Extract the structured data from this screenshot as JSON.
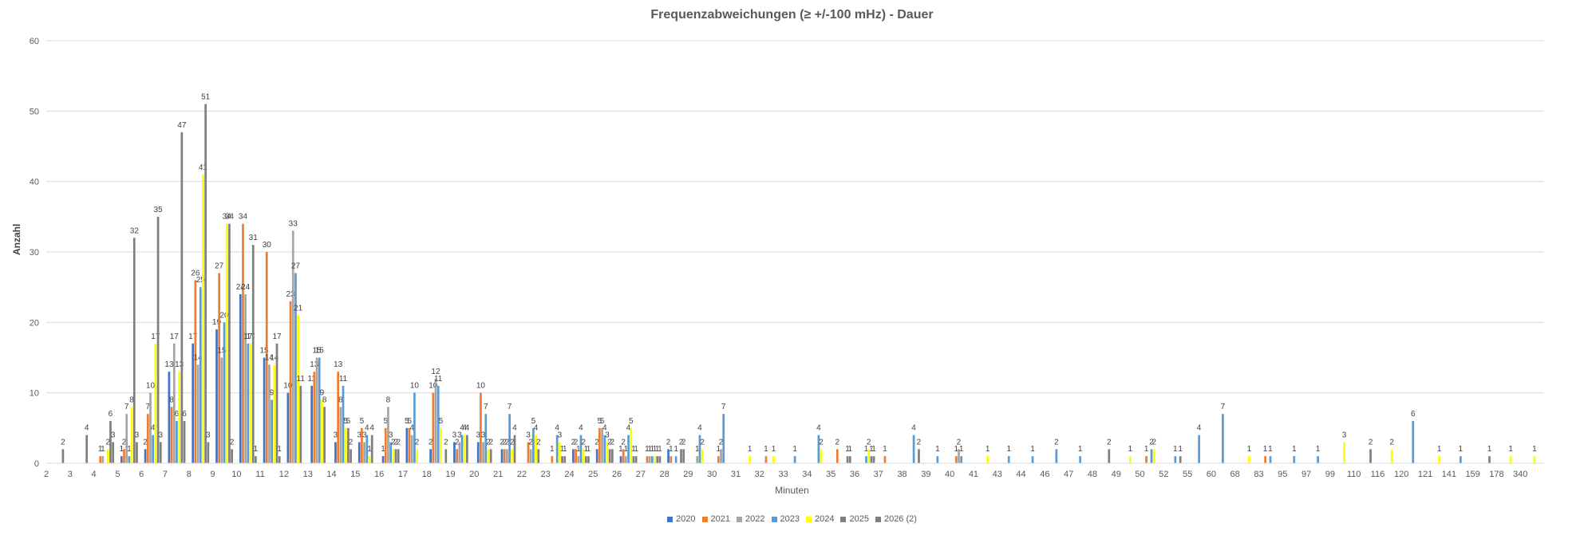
{
  "chart_data": {
    "type": "bar",
    "title": "Frequenzabweichungen (≥ +/-100 mHz) - Dauer",
    "xlabel": "Minuten",
    "ylabel": "Anzahl",
    "ylim": [
      0,
      60
    ],
    "yticks": [
      0,
      10,
      20,
      30,
      40,
      50,
      60
    ],
    "grid": true,
    "legend_position": "bottom",
    "categories": [
      "2",
      "3",
      "4",
      "5",
      "6",
      "7",
      "8",
      "9",
      "10",
      "11",
      "12",
      "13",
      "14",
      "15",
      "16",
      "17",
      "18",
      "19",
      "20",
      "21",
      "22",
      "23",
      "24",
      "25",
      "26",
      "27",
      "28",
      "29",
      "30",
      "31",
      "32",
      "33",
      "34",
      "35",
      "36",
      "37",
      "38",
      "39",
      "40",
      "41",
      "43",
      "44",
      "46",
      "47",
      "48",
      "49",
      "50",
      "52",
      "55",
      "60",
      "68",
      "83",
      "95",
      "97",
      "99",
      "110",
      "116",
      "120",
      "121",
      "141",
      "159",
      "178",
      "340"
    ],
    "series": [
      {
        "name": "2020",
        "color": "#4472C4",
        "values": [
          0,
          0,
          0,
          1,
          2,
          13,
          17,
          19,
          24,
          15,
          10,
          11,
          3,
          3,
          1,
          5,
          2,
          3,
          3,
          2,
          0,
          0,
          2,
          2,
          1,
          0,
          2,
          0,
          0,
          0,
          0,
          0,
          0,
          0,
          0,
          0,
          0,
          0,
          0,
          0,
          0,
          0,
          0,
          0,
          0,
          0,
          0,
          0,
          0,
          0,
          0,
          0,
          0,
          0,
          0,
          0,
          0,
          0,
          0,
          0,
          0,
          0,
          0
        ]
      },
      {
        "name": "2021",
        "color": "#ED7D31",
        "values": [
          0,
          0,
          1,
          2,
          7,
          8,
          26,
          27,
          34,
          30,
          23,
          13,
          13,
          5,
          5,
          5,
          10,
          2,
          10,
          2,
          3,
          1,
          2,
          5,
          2,
          1,
          1,
          0,
          1,
          0,
          1,
          0,
          0,
          2,
          0,
          1,
          0,
          0,
          1,
          0,
          0,
          0,
          0,
          0,
          0,
          0,
          1,
          0,
          0,
          0,
          0,
          1,
          0,
          0,
          0,
          0,
          0,
          0,
          0,
          0,
          0,
          0,
          0
        ]
      },
      {
        "name": "2022",
        "color": "#A5A5A5",
        "values": [
          0,
          0,
          1,
          7,
          10,
          17,
          14,
          15,
          24,
          14,
          33,
          15,
          8,
          3,
          8,
          4,
          12,
          3,
          3,
          2,
          2,
          0,
          1,
          5,
          1,
          1,
          0,
          1,
          2,
          0,
          0,
          0,
          0,
          0,
          0,
          0,
          0,
          0,
          2,
          0,
          0,
          0,
          0,
          0,
          0,
          0,
          0,
          0,
          0,
          0,
          0,
          0,
          0,
          0,
          0,
          0,
          0,
          0,
          0,
          0,
          0,
          0,
          0
        ]
      },
      {
        "name": "2023",
        "color": "#5B9BD5",
        "values": [
          0,
          0,
          0,
          1,
          4,
          6,
          25,
          20,
          17,
          9,
          27,
          15,
          11,
          4,
          3,
          10,
          11,
          4,
          7,
          7,
          5,
          4,
          4,
          4,
          4,
          1,
          1,
          4,
          7,
          0,
          0,
          1,
          4,
          0,
          1,
          0,
          4,
          1,
          1,
          0,
          1,
          1,
          2,
          1,
          0,
          0,
          2,
          1,
          4,
          7,
          0,
          1,
          1,
          1,
          0,
          0,
          0,
          6,
          0,
          1,
          0,
          0,
          0
        ]
      },
      {
        "name": "2024",
        "color": "#FFFF00",
        "values": [
          0,
          0,
          2,
          8,
          17,
          13,
          41,
          34,
          17,
          14,
          21,
          9,
          5,
          1,
          2,
          2,
          5,
          4,
          2,
          2,
          4,
          3,
          2,
          3,
          5,
          1,
          0,
          2,
          0,
          1,
          1,
          0,
          2,
          0,
          2,
          0,
          0,
          0,
          0,
          1,
          0,
          0,
          0,
          0,
          0,
          1,
          2,
          0,
          0,
          0,
          1,
          0,
          0,
          0,
          3,
          0,
          2,
          0,
          1,
          0,
          0,
          1,
          1
        ]
      },
      {
        "name": "2025",
        "color": "#7F7F7F",
        "values": [
          2,
          4,
          6,
          32,
          35,
          47,
          51,
          34,
          31,
          17,
          11,
          8,
          5,
          4,
          2,
          0,
          0,
          4,
          2,
          4,
          2,
          1,
          1,
          2,
          1,
          1,
          2,
          0,
          0,
          0,
          0,
          0,
          0,
          1,
          1,
          0,
          2,
          0,
          0,
          0,
          0,
          0,
          0,
          0,
          2,
          0,
          0,
          1,
          0,
          0,
          0,
          0,
          0,
          0,
          0,
          2,
          0,
          0,
          0,
          0,
          1,
          0,
          0
        ]
      },
      {
        "name": "2026 (2)",
        "color": "#7F7F7F",
        "values": [
          0,
          0,
          3,
          3,
          3,
          6,
          3,
          2,
          1,
          1,
          0,
          0,
          2,
          0,
          2,
          0,
          2,
          0,
          0,
          0,
          0,
          1,
          1,
          2,
          1,
          1,
          2,
          0,
          0,
          0,
          0,
          0,
          0,
          1,
          1,
          0,
          0,
          0,
          0,
          0,
          0,
          0,
          0,
          0,
          0,
          0,
          0,
          0,
          0,
          0,
          0,
          0,
          0,
          0,
          0,
          0,
          0,
          0,
          0,
          0,
          0,
          0,
          0
        ]
      }
    ]
  }
}
